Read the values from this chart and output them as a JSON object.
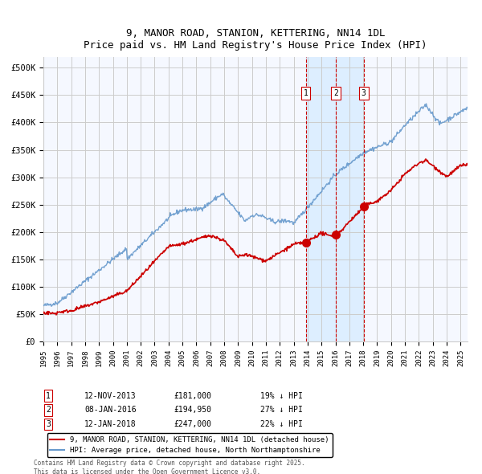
{
  "title": "9, MANOR ROAD, STANION, KETTERING, NN14 1DL",
  "subtitle": "Price paid vs. HM Land Registry's House Price Index (HPI)",
  "legend_red": "9, MANOR ROAD, STANION, KETTERING, NN14 1DL (detached house)",
  "legend_blue": "HPI: Average price, detached house, North Northamptonshire",
  "footer": "Contains HM Land Registry data © Crown copyright and database right 2025.\nThis data is licensed under the Open Government Licence v3.0.",
  "sale_labels": [
    {
      "num": 1,
      "date": "12-NOV-2013",
      "price": 181000,
      "note": "19% ↓ HPI"
    },
    {
      "num": 2,
      "date": "08-JAN-2016",
      "price": 194950,
      "note": "27% ↓ HPI"
    },
    {
      "num": 3,
      "date": "12-JAN-2018",
      "price": 247000,
      "note": "22% ↓ HPI"
    }
  ],
  "sale_dates_decimal": [
    2013.867,
    2016.022,
    2018.033
  ],
  "sale_prices": [
    181000,
    194950,
    247000
  ],
  "vline_dates_decimal": [
    2013.867,
    2016.022,
    2018.033
  ],
  "shade_start": 2013.867,
  "shade_end": 2018.033,
  "ylim": [
    0,
    520000
  ],
  "xlim_start": 1995.0,
  "xlim_end": 2025.5,
  "yticks": [
    0,
    50000,
    100000,
    150000,
    200000,
    250000,
    300000,
    350000,
    400000,
    450000,
    500000
  ],
  "ytick_labels": [
    "£0",
    "£50K",
    "£100K",
    "£150K",
    "£200K",
    "£250K",
    "£300K",
    "£350K",
    "£400K",
    "£450K",
    "£500K"
  ],
  "xtick_years": [
    1995,
    1996,
    1997,
    1998,
    1999,
    2000,
    2001,
    2002,
    2003,
    2004,
    2005,
    2006,
    2007,
    2008,
    2009,
    2010,
    2011,
    2012,
    2013,
    2014,
    2015,
    2016,
    2017,
    2018,
    2019,
    2020,
    2021,
    2022,
    2023,
    2024,
    2025
  ],
  "red_color": "#cc0000",
  "blue_color": "#6699cc",
  "shade_color": "#ddeeff",
  "grid_color": "#cccccc",
  "bg_color": "#f5f8ff"
}
